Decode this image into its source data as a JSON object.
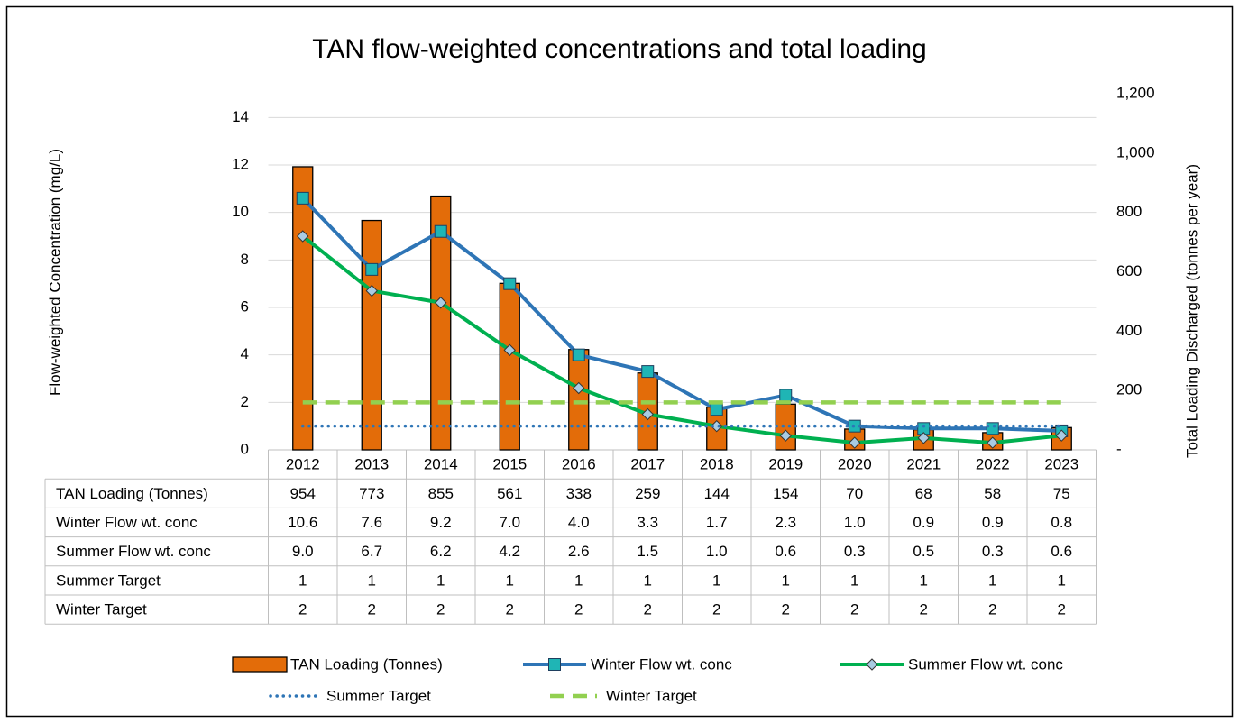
{
  "chart_data": {
    "type": "combo",
    "title": "TAN flow-weighted concentrations and total loading",
    "y_label": "Flow-weighted Concentration (mg/L)",
    "y2_label": "Total Loading Discharged (tonnes per year)",
    "categories": [
      "2012",
      "2013",
      "2014",
      "2015",
      "2016",
      "2017",
      "2018",
      "2019",
      "2020",
      "2021",
      "2022",
      "2023"
    ],
    "ylim": [
      0,
      15
    ],
    "yticks": [
      0,
      2,
      4,
      6,
      8,
      10,
      12,
      14
    ],
    "y2lim": [
      0,
      1200
    ],
    "y2ticks": [
      {
        "value": 0,
        "label": "-"
      },
      200,
      400,
      600,
      800,
      {
        "value": 1000,
        "label": "1,000"
      },
      {
        "value": 1200,
        "label": "1,200"
      }
    ],
    "grid": true,
    "series": [
      {
        "name": "TAN Loading (Tonnes)",
        "type": "bar",
        "axis": "y2",
        "color": "#e36c09",
        "values": [
          954,
          773,
          855,
          561,
          338,
          259,
          144,
          154,
          70,
          68,
          58,
          75
        ]
      },
      {
        "name": "Winter Flow wt. conc",
        "type": "line",
        "color": "#2e75b6",
        "marker": "square",
        "marker_color": "#1fb5b5",
        "values": [
          10.6,
          7.6,
          9.2,
          7.0,
          4.0,
          3.3,
          1.7,
          2.3,
          1.0,
          0.9,
          0.9,
          0.8
        ],
        "value_labels": [
          "10.6",
          "7.6",
          "9.2",
          "7.0",
          "4.0",
          "3.3",
          "1.7",
          "2.3",
          "1.0",
          "0.9",
          "0.9",
          "0.8"
        ]
      },
      {
        "name": "Summer Flow wt. conc",
        "type": "line",
        "color": "#00b050",
        "marker": "diamond",
        "marker_color": "#a9cce3",
        "values": [
          9.0,
          6.7,
          6.2,
          4.2,
          2.6,
          1.5,
          1.0,
          0.6,
          0.3,
          0.5,
          0.3,
          0.6
        ],
        "value_labels": [
          "9.0",
          "6.7",
          "6.2",
          "4.2",
          "2.6",
          "1.5",
          "1.0",
          "0.6",
          "0.3",
          "0.5",
          "0.3",
          "0.6"
        ]
      },
      {
        "name": "Summer Target",
        "type": "line",
        "color": "#2e75b6",
        "dash": "dotted",
        "values": [
          1,
          1,
          1,
          1,
          1,
          1,
          1,
          1,
          1,
          1,
          1,
          1
        ]
      },
      {
        "name": "Winter Target",
        "type": "line",
        "color": "#92d050",
        "dash": "dashed",
        "values": [
          2,
          2,
          2,
          2,
          2,
          2,
          2,
          2,
          2,
          2,
          2,
          2
        ]
      }
    ]
  }
}
